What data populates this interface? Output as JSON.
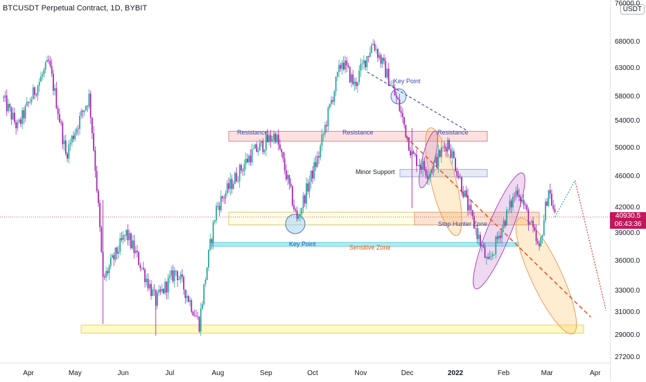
{
  "title": "BTCUSDT Perpetual Contract, 1D, BYBIT",
  "currency": "USDT",
  "price_axis": [
    "76000.0",
    "68000.0",
    "63000.0",
    "58000.0",
    "54000.0",
    "50000.0",
    "46000.0",
    "42000.0",
    "39000.0",
    "36000.0",
    "33000.0",
    "31000.0",
    "29000.0",
    "27200.0"
  ],
  "time_axis": [
    "Apr",
    "May",
    "Jun",
    "Jul",
    "Aug",
    "Sep",
    "Oct",
    "Nov",
    "Dec",
    "2022",
    "Feb",
    "Mar",
    "Apr"
  ],
  "current_price": "40930.5",
  "countdown": "06:43:36",
  "annotations": {
    "resistance_1": "Resistance",
    "resistance_2": "Resistance",
    "resistance_3": "Resistance",
    "minor_support": "Minor Support",
    "stop_hunter": "Stop Hunter Zone",
    "sensitive": "Sensitive Zone",
    "key_point_top": "Key Point",
    "key_point_bottom": "Key Point"
  },
  "colors": {
    "bull": "#26a69a",
    "bear": "#a326b5",
    "price_line": "#c2185b",
    "trend": "#f4511e",
    "key_point": "#3f51b5"
  },
  "chart_data": {
    "type": "candlestick",
    "title": "BTCUSDT Perpetual Contract, 1D, BYBIT",
    "y_unit": "USDT",
    "x_labels": [
      "Apr",
      "May",
      "Jun",
      "Jul",
      "Aug",
      "Sep",
      "Oct",
      "Nov",
      "Dec",
      "2022",
      "Feb",
      "Mar",
      "Apr"
    ],
    "y_ticks": [
      76000,
      68000,
      63000,
      58000,
      54000,
      50000,
      46000,
      42000,
      39000,
      36000,
      33000,
      31000,
      29000,
      27200
    ],
    "last_price": 40930.5,
    "waypoints": [
      {
        "date": "2021-03-15",
        "price": 58000
      },
      {
        "date": "2021-03-25",
        "price": 53000
      },
      {
        "date": "2021-04-14",
        "price": 64000
      },
      {
        "date": "2021-04-25",
        "price": 49000
      },
      {
        "date": "2021-05-10",
        "price": 58000
      },
      {
        "date": "2021-05-19",
        "price": 34000
      },
      {
        "date": "2021-06-03",
        "price": 39000
      },
      {
        "date": "2021-06-22",
        "price": 32000
      },
      {
        "date": "2021-07-05",
        "price": 35000
      },
      {
        "date": "2021-07-20",
        "price": 30000
      },
      {
        "date": "2021-07-31",
        "price": 42000
      },
      {
        "date": "2021-08-22",
        "price": 49000
      },
      {
        "date": "2021-09-07",
        "price": 52000
      },
      {
        "date": "2021-09-21",
        "price": 40500
      },
      {
        "date": "2021-10-05",
        "price": 49000
      },
      {
        "date": "2021-10-20",
        "price": 64500
      },
      {
        "date": "2021-10-28",
        "price": 60000
      },
      {
        "date": "2021-11-09",
        "price": 68000
      },
      {
        "date": "2021-11-25",
        "price": 57000
      },
      {
        "date": "2021-12-04",
        "price": 49000
      },
      {
        "date": "2021-12-15",
        "price": 46500
      },
      {
        "date": "2021-12-27",
        "price": 51000
      },
      {
        "date": "2022-01-10",
        "price": 41500
      },
      {
        "date": "2022-01-22",
        "price": 35500
      },
      {
        "date": "2022-02-10",
        "price": 44500
      },
      {
        "date": "2022-02-24",
        "price": 37000
      },
      {
        "date": "2022-03-02",
        "price": 44500
      },
      {
        "date": "2022-03-06",
        "price": 40930
      }
    ],
    "levels": {
      "resistance": 51500,
      "minor_support": 46500,
      "stop_hunter_zone": [
        40000,
        41500
      ],
      "sensitive_zone": 37800,
      "bottom_support_zone": [
        29200,
        29900
      ]
    },
    "projection": [
      {
        "date": "2022-03-06",
        "price": 40930
      },
      {
        "date": "2022-03-19",
        "price": 45500
      },
      {
        "date": "2022-04-08",
        "price": 31200
      }
    ],
    "grid": false
  }
}
